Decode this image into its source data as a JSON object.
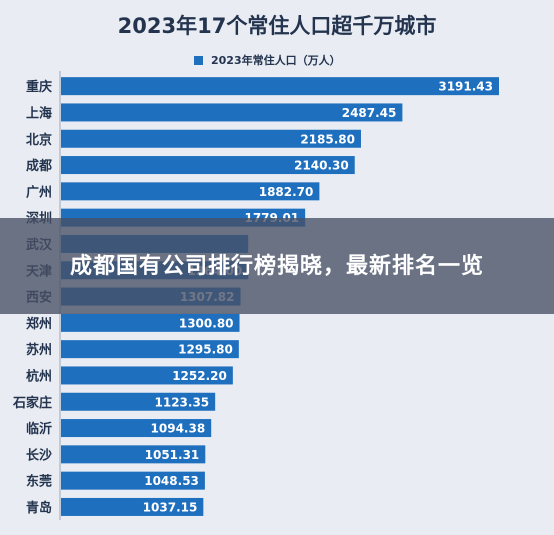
{
  "chart_data": {
    "type": "bar",
    "orientation": "horizontal",
    "title": "2023年17个常住人口超千万城市",
    "legend": {
      "position": "top",
      "entries": [
        "2023年常住人口（万人）"
      ]
    },
    "series": [
      {
        "name": "2023年常住人口（万人）",
        "color": "#1f6fbf",
        "values": [
          3191.43,
          2487.45,
          2185.8,
          2140.3,
          1882.7,
          1779.01,
          1364.0,
          1364.0,
          1307.82,
          1300.8,
          1295.8,
          1252.2,
          1123.35,
          1094.38,
          1051.31,
          1048.53,
          1037.15
        ]
      }
    ],
    "categories": [
      "重庆",
      "上海",
      "北京",
      "成都",
      "广州",
      "深圳",
      "武汉",
      "天津",
      "西安",
      "郑州",
      "苏州",
      "杭州",
      "石家庄",
      "临沂",
      "长沙",
      "东莞",
      "青岛"
    ],
    "value_labels": [
      "3191.43",
      "2487.45",
      "2185.80",
      "2140.30",
      "1882.70",
      "1779.01",
      "",
      "1364.00",
      "1307.82",
      "1300.80",
      "1295.80",
      "1252.20",
      "1123.35",
      "1094.38",
      "1051.31",
      "1048.53",
      "1037.15"
    ],
    "xlim": [
      0,
      3191.43
    ],
    "grid": false
  },
  "overlay": {
    "headline": "成都国有公司排行榜揭晓，最新排名一览"
  },
  "colors": {
    "bar": "#1f6fbf",
    "background": "#e9edf3",
    "category_text": "#24344f",
    "value_text": "#ffffff"
  }
}
